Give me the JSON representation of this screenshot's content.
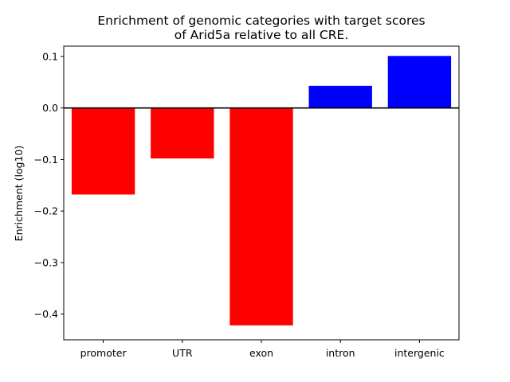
{
  "chart_data": {
    "type": "bar",
    "title_lines": [
      "Enrichment of genomic categories with target scores",
      "of Arid5a relative to all CRE."
    ],
    "xlabel": "",
    "ylabel": "Enrichment (log10)",
    "categories": [
      "promoter",
      "UTR",
      "exon",
      "intron",
      "intergenic"
    ],
    "values": [
      -0.168,
      -0.098,
      -0.422,
      0.043,
      0.101
    ],
    "bar_colors": [
      "#ff0000",
      "#ff0000",
      "#ff0000",
      "#0000ff",
      "#0000ff"
    ],
    "ylim": [
      -0.45,
      0.12
    ],
    "yticks": [
      0.1,
      0.0,
      -0.1,
      -0.2,
      -0.3,
      -0.4
    ],
    "ytick_labels": [
      "0.1",
      "0.0",
      "−0.1",
      "−0.2",
      "−0.3",
      "−0.4"
    ],
    "zero_line": true,
    "grid": false,
    "legend": "none"
  }
}
